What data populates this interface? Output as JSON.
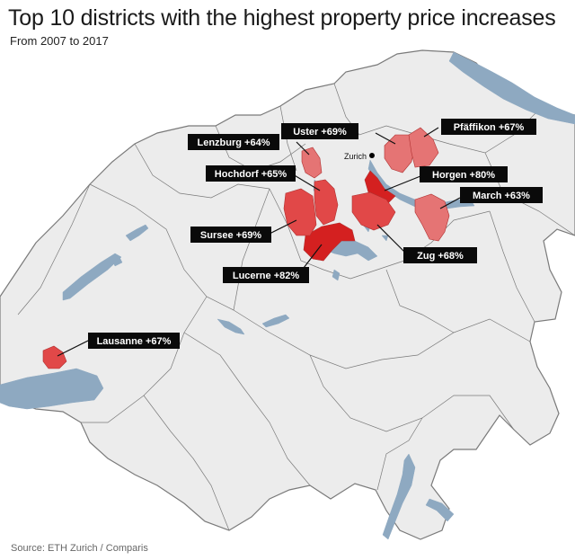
{
  "title": "Top 10 districts with the highest property price increases",
  "subtitle": "From 2007 to 2017",
  "source": "Source: ETH Zurich / Comparis",
  "colors": {
    "land": "#ececec",
    "border": "#7a7a7a",
    "lake": "#8ea9c1",
    "high": "#d42020",
    "mid": "#e14848",
    "low": "#e57474"
  },
  "city": {
    "name": "Zurich",
    "icon": "city-dot-icon"
  },
  "districts": [
    {
      "name": "Lucerne",
      "label": "Lucerne +82%",
      "increase": 82
    },
    {
      "name": "Horgen",
      "label": "Horgen +80%",
      "increase": 80
    },
    {
      "name": "Uster",
      "label": "Uster +69%",
      "increase": 69
    },
    {
      "name": "Sursee",
      "label": "Sursee +69%",
      "increase": 69
    },
    {
      "name": "Zug",
      "label": "Zug +68%",
      "increase": 68
    },
    {
      "name": "Pfäffikon",
      "label": "Pfäffikon +67%",
      "increase": 67
    },
    {
      "name": "Lausanne",
      "label": "Lausanne +67%",
      "increase": 67
    },
    {
      "name": "Hochdorf",
      "label": "Hochdorf +65%",
      "increase": 65
    },
    {
      "name": "Lenzburg",
      "label": "Lenzburg +64%",
      "increase": 64
    },
    {
      "name": "March",
      "label": "March +63%",
      "increase": 63
    }
  ]
}
